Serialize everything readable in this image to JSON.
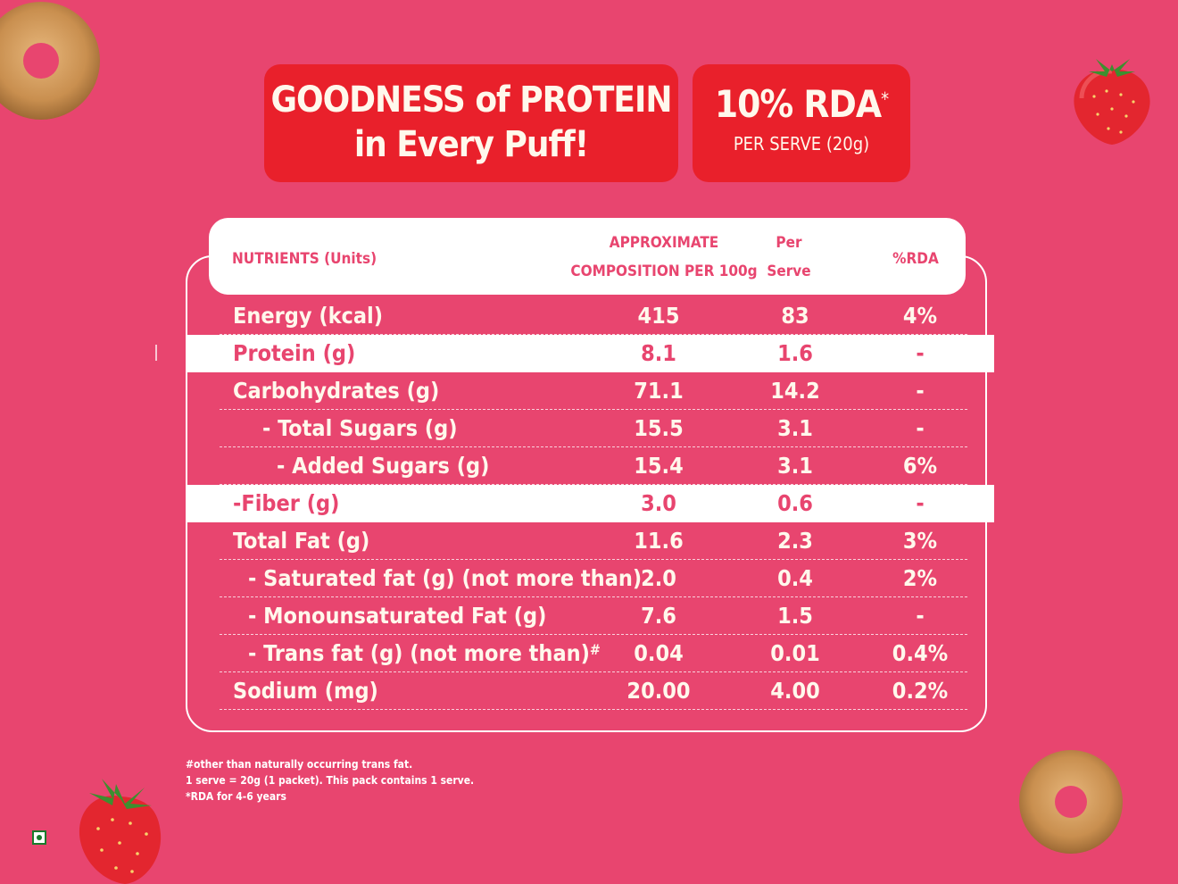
{
  "banner_main": {
    "line1": "GOODNESS of PROTEIN",
    "line2": "in Every Puff!"
  },
  "banner_rda": {
    "value": "10% RDA",
    "mark": "*",
    "sub": "PER SERVE (20g)"
  },
  "table": {
    "headers": {
      "nutrients": "NUTRIENTS (Units)",
      "composition_line1": "APPROXIMATE",
      "composition_line2": "COMPOSITION PER 100g",
      "serve_line1": "Per",
      "serve_line2": "Serve",
      "rda": "%RDA"
    },
    "rows": [
      {
        "name": "Energy (kcal)",
        "per100": "415",
        "serve": "83",
        "rda": "4%"
      },
      {
        "name": "Protein (g)",
        "per100": "8.1",
        "serve": "1.6",
        "rda": "-"
      },
      {
        "name": "Carbohydrates (g)",
        "per100": "71.1",
        "serve": "14.2",
        "rda": "-"
      },
      {
        "name": "- Total Sugars (g)",
        "per100": "15.5",
        "serve": "3.1",
        "rda": "-"
      },
      {
        "name": "- Added Sugars (g)",
        "per100": "15.4",
        "serve": "3.1",
        "rda": "6%"
      },
      {
        "name": "-Fiber (g)",
        "per100": "3.0",
        "serve": "0.6",
        "rda": "-"
      },
      {
        "name": "Total Fat (g)",
        "per100": "11.6",
        "serve": "2.3",
        "rda": "3%"
      },
      {
        "name": "- Saturated fat (g) (not more than)",
        "per100": "2.0",
        "serve": "0.4",
        "rda": "2%"
      },
      {
        "name": "- Monounsaturated Fat (g)",
        "per100": "7.6",
        "serve": "1.5",
        "rda": "-"
      },
      {
        "name": "- Trans fat (g) (not more than)",
        "mark": "#",
        "per100": "0.04",
        "serve": "0.01",
        "rda": "0.4%"
      },
      {
        "name": "Sodium (mg)",
        "per100": "20.00",
        "serve": "4.00",
        "rda": "0.2%"
      }
    ]
  },
  "footnotes": {
    "line1": "#other than naturally occurring trans fat.",
    "line2": "1 serve = 20g (1 packet). This pack contains 1 serve.",
    "line3": "*RDA for 4-6 years"
  },
  "colors": {
    "background": "#e8456f",
    "banner": "#e9202b",
    "cream_text": "#fff8ec"
  },
  "decor": [
    "cereal-ring-image",
    "strawberry-image",
    "veg-mark-icon"
  ]
}
